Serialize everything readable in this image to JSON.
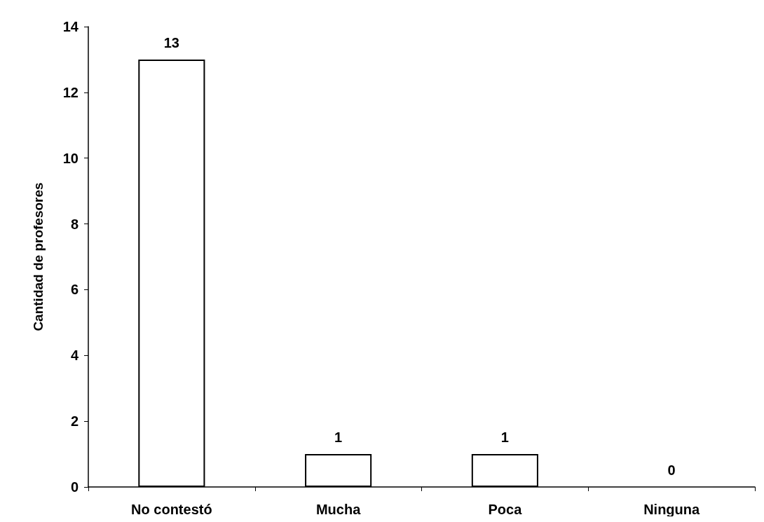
{
  "chart_data": {
    "type": "bar",
    "ylabel": "Cantidad de profesores",
    "categories": [
      "No contestó",
      "Mucha",
      "Poca",
      "Ninguna"
    ],
    "values": [
      13,
      1,
      1,
      0
    ],
    "color": "#ffffff",
    "ylim": [
      0,
      14
    ],
    "yticks": [
      0,
      2,
      4,
      6,
      8,
      10,
      12,
      14
    ],
    "grid": false,
    "data_labels": true
  }
}
